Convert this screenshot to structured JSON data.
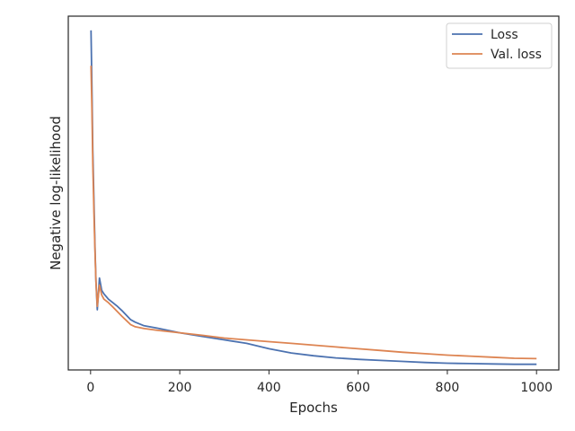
{
  "chart_data": {
    "type": "line",
    "title": "",
    "xlabel": "Epochs",
    "ylabel": "Negative log-likelihood",
    "xlim": [
      -50,
      1050
    ],
    "ylim": [
      0,
      1
    ],
    "y_tick_labels_shown": false,
    "x_ticks": [
      0,
      200,
      400,
      600,
      800,
      1000
    ],
    "x_tick_labels": [
      "0",
      "200",
      "400",
      "600",
      "800",
      "1000"
    ],
    "grid": false,
    "legend_position": "top-right",
    "series": [
      {
        "name": "Loss",
        "color": "#4c72b0",
        "x": [
          1,
          3,
          5,
          8,
          10,
          12,
          15,
          20,
          25,
          30,
          40,
          50,
          60,
          70,
          80,
          90,
          100,
          120,
          150,
          200,
          250,
          300,
          350,
          400,
          450,
          500,
          550,
          600,
          650,
          700,
          750,
          800,
          850,
          900,
          950,
          1000
        ],
        "y": [
          0.96,
          0.8,
          0.62,
          0.45,
          0.34,
          0.25,
          0.17,
          0.26,
          0.225,
          0.215,
          0.2,
          0.19,
          0.18,
          0.168,
          0.155,
          0.142,
          0.135,
          0.125,
          0.118,
          0.105,
          0.095,
          0.085,
          0.075,
          0.06,
          0.048,
          0.04,
          0.034,
          0.03,
          0.027,
          0.024,
          0.021,
          0.019,
          0.018,
          0.017,
          0.016,
          0.016
        ]
      },
      {
        "name": "Val. loss",
        "color": "#dd8452",
        "x": [
          1,
          3,
          5,
          8,
          10,
          12,
          15,
          20,
          25,
          30,
          40,
          50,
          60,
          70,
          80,
          90,
          100,
          120,
          150,
          200,
          250,
          300,
          350,
          400,
          450,
          500,
          550,
          600,
          650,
          700,
          750,
          800,
          850,
          900,
          950,
          1000
        ],
        "y": [
          0.86,
          0.74,
          0.58,
          0.42,
          0.33,
          0.25,
          0.18,
          0.24,
          0.212,
          0.2,
          0.19,
          0.178,
          0.165,
          0.152,
          0.14,
          0.128,
          0.122,
          0.117,
          0.112,
          0.105,
          0.098,
          0.09,
          0.085,
          0.08,
          0.075,
          0.07,
          0.065,
          0.06,
          0.055,
          0.05,
          0.046,
          0.042,
          0.039,
          0.036,
          0.033,
          0.032
        ]
      }
    ]
  }
}
